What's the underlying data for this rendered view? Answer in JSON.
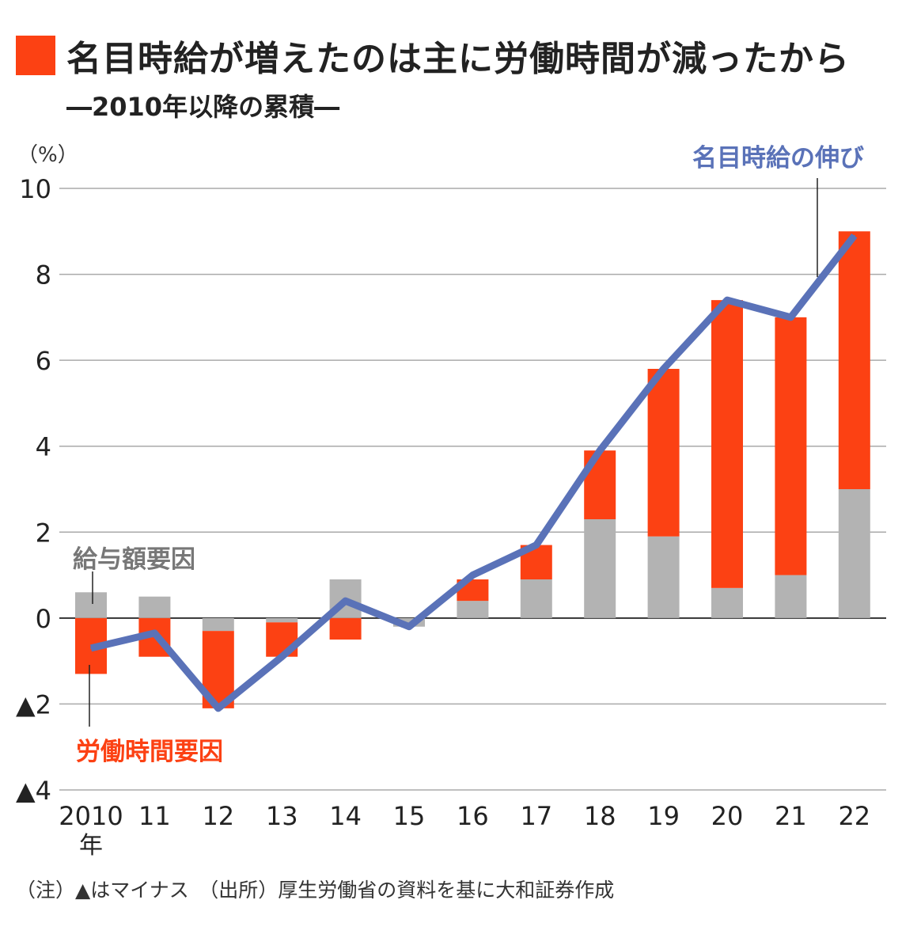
{
  "title": "名目時給が増えたのは主に労働時間が減ったから",
  "subtitle": "―2010年以降の累積―",
  "note": "（注）▲はマイナス　（出所）厚生労働省の資料を基に大和証券作成",
  "colors": {
    "hours": "#fc4113",
    "wage": "#b3b3b3",
    "line": "#5a72b8"
  },
  "chart_data": {
    "type": "bar",
    "stacked": true,
    "ylabel": "（%）",
    "ylim": [
      -4,
      10
    ],
    "yticks": [
      10,
      8,
      6,
      4,
      2,
      0,
      -2,
      -4
    ],
    "ytick_labels": [
      "10",
      "8",
      "6",
      "4",
      "2",
      "0",
      "▲2",
      "▲4"
    ],
    "grid": true,
    "categories": [
      "2010",
      "11",
      "12",
      "13",
      "14",
      "15",
      "16",
      "17",
      "18",
      "19",
      "20",
      "21",
      "22"
    ],
    "first_category_suffix": "年",
    "series": [
      {
        "name": "給与額要因",
        "type": "bar",
        "values": [
          0.6,
          0.5,
          -0.3,
          -0.1,
          0.9,
          -0.2,
          0.4,
          0.9,
          2.3,
          1.9,
          0.7,
          1.0,
          3.0
        ]
      },
      {
        "name": "労働時間要因",
        "type": "bar",
        "values": [
          -1.3,
          -0.9,
          -1.8,
          -0.8,
          -0.5,
          0.0,
          0.5,
          0.8,
          1.6,
          3.9,
          6.7,
          6.0,
          6.0
        ]
      },
      {
        "name": "名目時給の伸び",
        "type": "line",
        "values": [
          -0.7,
          -0.35,
          -2.1,
          -0.9,
          0.4,
          -0.2,
          1.0,
          1.7,
          3.9,
          5.8,
          7.4,
          7.0,
          8.9
        ]
      }
    ]
  }
}
